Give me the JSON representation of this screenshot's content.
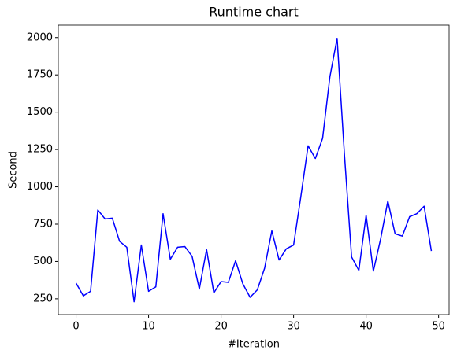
{
  "chart_data": {
    "type": "line",
    "title": "Runtime chart",
    "x_label": "#Iteration",
    "y_label": "Second",
    "x": [
      0,
      1,
      2,
      3,
      4,
      5,
      6,
      7,
      8,
      9,
      10,
      11,
      12,
      13,
      14,
      15,
      16,
      17,
      18,
      19,
      20,
      21,
      22,
      23,
      24,
      25,
      26,
      27,
      28,
      29,
      30,
      31,
      32,
      33,
      34,
      35,
      36,
      37,
      38,
      39,
      40,
      41,
      42,
      43,
      44,
      45,
      46,
      47,
      48,
      49
    ],
    "series": [
      {
        "name": "Runtime",
        "color": "#0000ff",
        "values": [
          355,
          270,
          300,
          845,
          785,
          790,
          635,
          595,
          230,
          610,
          300,
          330,
          820,
          515,
          595,
          600,
          535,
          315,
          580,
          290,
          365,
          360,
          505,
          350,
          260,
          310,
          455,
          705,
          510,
          585,
          610,
          935,
          1275,
          1190,
          1325,
          1735,
          1995,
          1225,
          530,
          440,
          810,
          435,
          650,
          905,
          685,
          670,
          800,
          820,
          870,
          570
        ]
      }
    ],
    "xlim": [
      -2.45,
      51.45
    ],
    "xticks": [
      0,
      10,
      20,
      30,
      40,
      50
    ],
    "ylim": [
      144,
      2083
    ],
    "yticks": [
      250,
      500,
      750,
      1000,
      1250,
      1500,
      1750,
      2000
    ]
  }
}
